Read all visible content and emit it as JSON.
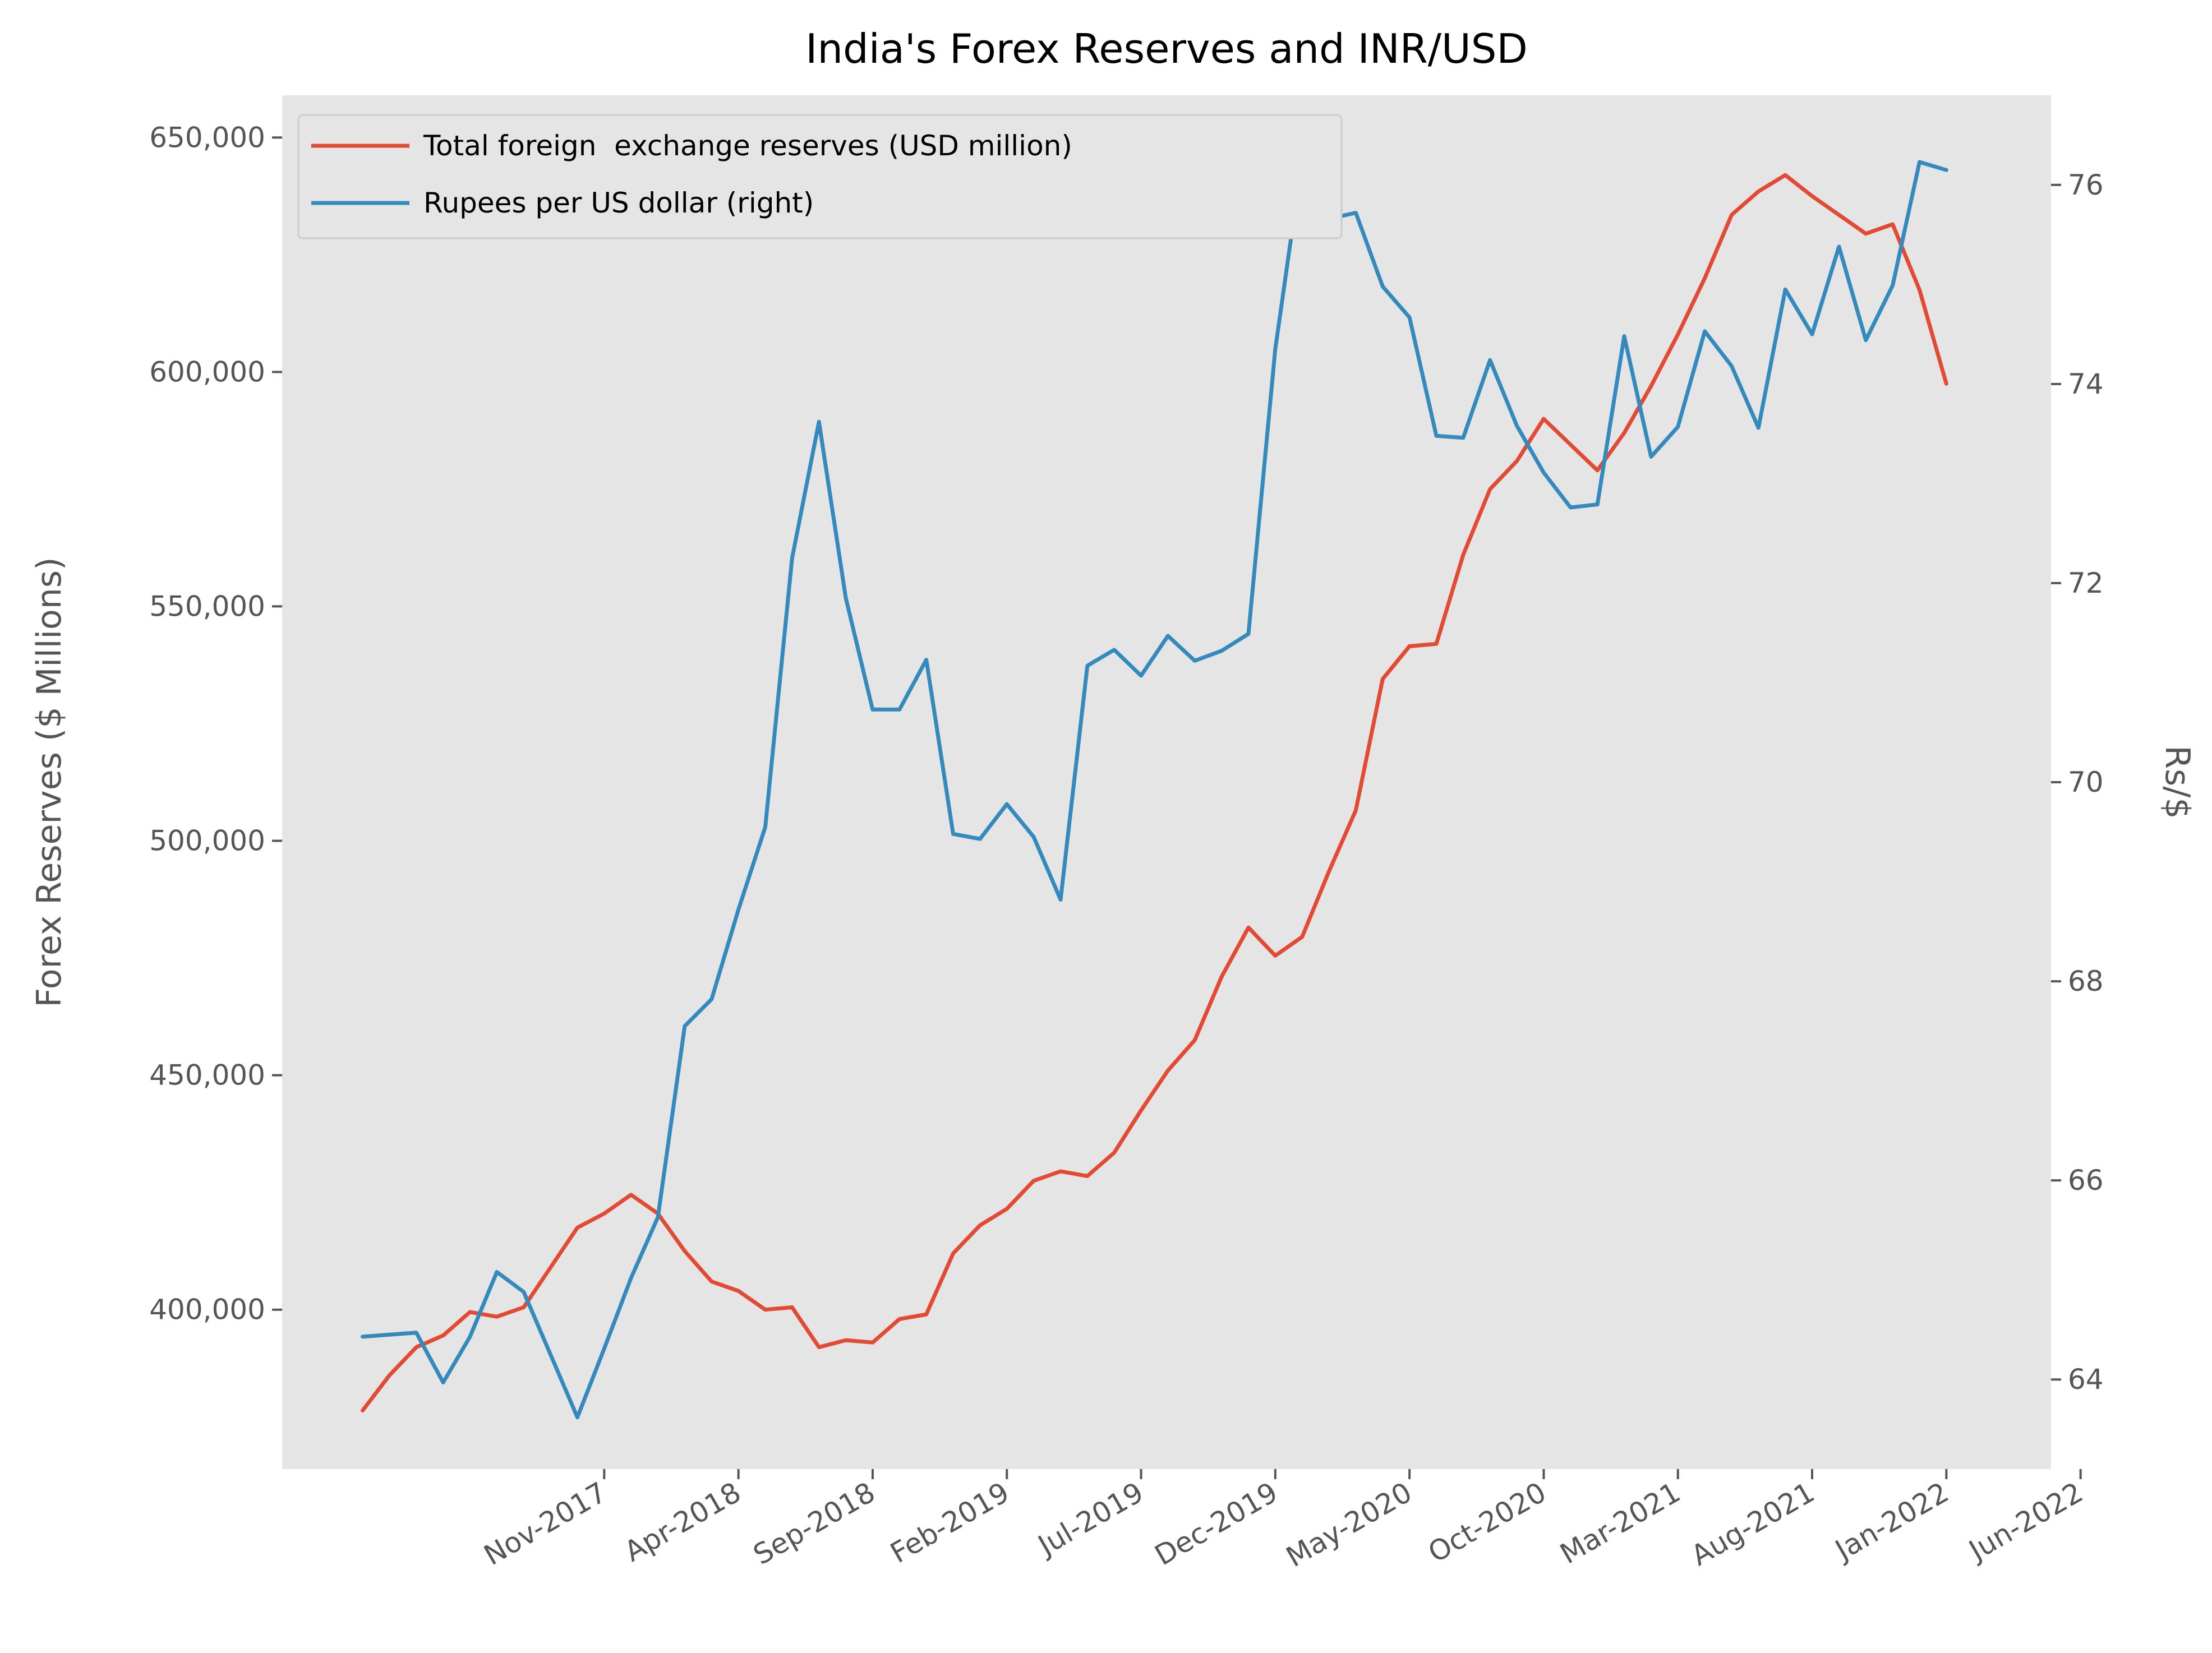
{
  "chart_data": {
    "type": "line",
    "title": "India's Forex Reserves and INR/USD",
    "ylabel_left": "Forex Reserves ($ Millions)",
    "ylabel_right": "Rs/$",
    "x_tick_labels": [
      "Nov-2017",
      "Apr-2018",
      "Sep-2018",
      "Feb-2019",
      "Jul-2019",
      "Dec-2019",
      "May-2020",
      "Oct-2020",
      "Mar-2021",
      "Aug-2021",
      "Jan-2022",
      "Jun-2022"
    ],
    "x_tick_months": [
      2,
      7,
      12,
      17,
      22,
      27,
      32,
      37,
      42,
      47,
      52,
      57
    ],
    "x_months": [
      -7,
      -6,
      -5,
      -4,
      -3,
      -2,
      -1,
      0,
      1,
      2,
      3,
      4,
      5,
      6,
      7,
      8,
      9,
      10,
      11,
      12,
      13,
      14,
      15,
      16,
      17,
      18,
      19,
      20,
      21,
      22,
      23,
      24,
      25,
      26,
      27,
      28,
      29,
      30,
      31,
      32,
      33,
      34,
      35,
      36,
      37,
      38,
      39,
      40,
      41,
      42,
      43,
      44,
      45,
      46,
      47,
      48,
      49,
      50,
      51,
      52,
      53
    ],
    "x_range": [
      -10.0,
      55.9
    ],
    "ylim_left": [
      366000,
      659000
    ],
    "ylim_right": [
      63.1,
      76.9
    ],
    "left_ticks": [
      400000,
      450000,
      500000,
      550000,
      600000,
      650000
    ],
    "left_tick_labels": [
      "400,000",
      "450,000",
      "500,000",
      "550,000",
      "600,000",
      "650,000"
    ],
    "right_ticks": [
      64,
      66,
      68,
      70,
      72,
      74,
      76
    ],
    "right_tick_labels": [
      "64",
      "66",
      "68",
      "70",
      "72",
      "74",
      "76"
    ],
    "grid": false,
    "legend_position": "upper-left",
    "series": [
      {
        "name": "Total foreign  exchange reserves (USD million)",
        "axis": "left",
        "color": "#E24A33",
        "values": [
          378500,
          386000,
          392000,
          394500,
          399500,
          398500,
          400500,
          409000,
          417500,
          420500,
          424500,
          420500,
          412500,
          406000,
          404000,
          400000,
          400500,
          392000,
          393500,
          393000,
          398000,
          399000,
          412000,
          418000,
          421500,
          427500,
          429500,
          428500,
          433500,
          442500,
          451000,
          457500,
          471000,
          481500,
          475500,
          479500,
          493500,
          506500,
          534500,
          541500,
          542000,
          561000,
          575000,
          581000,
          590000,
          584500,
          579000,
          587000,
          597000,
          608000,
          620000,
          633500,
          638500,
          642000,
          637500,
          633500,
          629500,
          631500,
          617500,
          597500,
          null
        ]
      },
      {
        "name": "Rupees per US dollar (right)",
        "axis": "right",
        "color": "#348ABD",
        "values": [
          64.43,
          64.45,
          64.47,
          63.97,
          64.43,
          65.08,
          64.88,
          64.25,
          63.62,
          64.31,
          65.02,
          65.63,
          67.55,
          67.82,
          68.72,
          69.55,
          72.25,
          73.62,
          71.85,
          70.73,
          70.73,
          71.23,
          69.48,
          69.43,
          69.78,
          69.45,
          68.82,
          71.17,
          71.33,
          71.07,
          71.47,
          71.22,
          71.32,
          71.49,
          74.35,
          76.25,
          75.66,
          75.72,
          74.98,
          74.67,
          73.48,
          73.46,
          74.24,
          73.58,
          73.11,
          72.76,
          72.79,
          74.48,
          73.27,
          73.57,
          74.53,
          74.18,
          73.56,
          74.95,
          74.5,
          75.38,
          74.44,
          74.99,
          76.23,
          76.15,
          null
        ]
      }
    ]
  }
}
